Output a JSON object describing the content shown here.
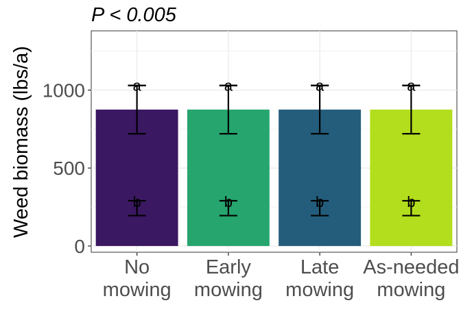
{
  "chart_data": {
    "type": "bar",
    "title": "P < 0.005",
    "ylabel": "Weed biomass (lbs/a)",
    "xlabel": "",
    "ylim": [
      -40,
      1380
    ],
    "yticks": [
      0,
      500,
      1000
    ],
    "grid": true,
    "categories": [
      [
        "No",
        "mowing"
      ],
      [
        "Early",
        "mowing"
      ],
      [
        "Late",
        "mowing"
      ],
      [
        "As-needed",
        "mowing"
      ]
    ],
    "values": [
      875,
      875,
      875,
      875
    ],
    "colors": [
      "#3b1862",
      "#26a56e",
      "#245d7c",
      "#b2de1d"
    ],
    "error_bars": [
      {
        "low": 720,
        "high": 1030
      },
      {
        "low": 720,
        "high": 1030
      },
      {
        "low": 720,
        "high": 1030
      },
      {
        "low": 720,
        "high": 1030
      }
    ],
    "group_markers": [
      {
        "letter": "a",
        "center": 1030,
        "low": 1030,
        "high": 1030
      },
      {
        "letter": "b",
        "center": 285,
        "low": 195,
        "high": 290
      }
    ]
  }
}
